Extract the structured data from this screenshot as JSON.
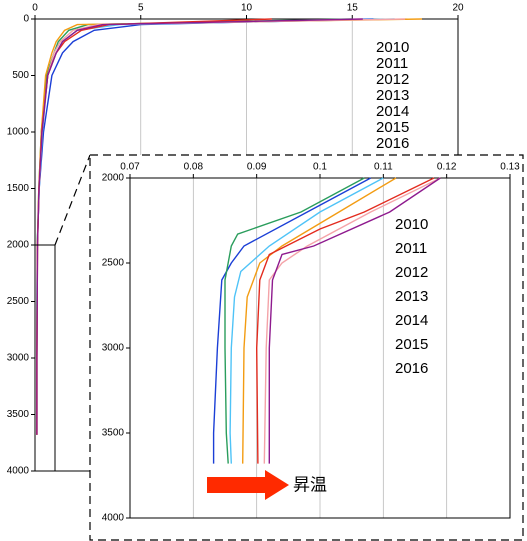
{
  "chart_data": [
    {
      "type": "line",
      "invert_y": true,
      "grid": true,
      "xlim": [
        0,
        20
      ],
      "xticks": [
        0,
        5,
        10,
        15,
        20
      ],
      "ylim": [
        0,
        4000
      ],
      "yticks": [
        0,
        500,
        1000,
        1500,
        2000,
        2500,
        3000,
        3500,
        4000
      ],
      "series": [
        {
          "name": "2010",
          "color": "#1b3fd6",
          "x": [
            16.0,
            5.0,
            2.8,
            1.8,
            1.3,
            0.8,
            0.4,
            0.2,
            0.108,
            0.084,
            0.083
          ],
          "y": [
            0,
            50,
            100,
            200,
            300,
            500,
            1000,
            1500,
            2000,
            3000,
            3680
          ]
        },
        {
          "name": "2011",
          "color": "#4fc3f7",
          "x": [
            17.0,
            4.0,
            2.0,
            1.3,
            1.0,
            0.6,
            0.35,
            0.2,
            0.11,
            0.086,
            0.086
          ],
          "y": [
            0,
            50,
            100,
            200,
            300,
            500,
            1000,
            1500,
            2000,
            3000,
            3680
          ]
        },
        {
          "name": "2012",
          "color": "#2a9d5c",
          "x": [
            15.0,
            2.5,
            1.6,
            1.1,
            0.9,
            0.55,
            0.3,
            0.18,
            0.107,
            0.085,
            0.0855
          ],
          "y": [
            0,
            50,
            100,
            200,
            300,
            500,
            1000,
            1500,
            2000,
            3000,
            3680
          ]
        },
        {
          "name": "2013",
          "color": "#f39c12",
          "x": [
            18.3,
            2.0,
            1.4,
            1.0,
            0.8,
            0.5,
            0.3,
            0.18,
            0.112,
            0.088,
            0.0878
          ],
          "y": [
            0,
            50,
            100,
            200,
            300,
            500,
            1000,
            1500,
            2000,
            3000,
            3680
          ]
        },
        {
          "name": "2014",
          "color": "#f4a3a8",
          "x": [
            17.5,
            3.0,
            1.8,
            1.2,
            0.9,
            0.6,
            0.33,
            0.19,
            0.119,
            0.0915,
            0.0912
          ],
          "y": [
            0,
            50,
            100,
            200,
            300,
            500,
            1000,
            1500,
            2000,
            3000,
            3680
          ]
        },
        {
          "name": "2015",
          "color": "#e32b1e",
          "x": [
            11.2,
            3.5,
            2.2,
            1.4,
            1.0,
            0.6,
            0.32,
            0.19,
            0.118,
            0.09,
            0.0902
          ],
          "y": [
            0,
            50,
            100,
            200,
            300,
            500,
            1000,
            1500,
            2000,
            3000,
            3680
          ]
        },
        {
          "name": "2016",
          "color": "#8e1a8e",
          "x": [
            15.5,
            3.2,
            2.0,
            1.3,
            1.0,
            0.6,
            0.33,
            0.19,
            0.119,
            0.092,
            0.092
          ],
          "y": [
            0,
            50,
            100,
            200,
            300,
            500,
            1000,
            1500,
            2000,
            3000,
            3680
          ]
        }
      ]
    },
    {
      "type": "line",
      "invert_y": true,
      "grid": true,
      "xlim": [
        0.07,
        0.13
      ],
      "xticks": [
        0.07,
        0.08,
        0.09,
        0.1,
        0.11,
        0.12,
        0.13
      ],
      "ylim": [
        2000,
        4000
      ],
      "yticks": [
        2000,
        2500,
        3000,
        3500,
        4000
      ],
      "annotation": "昇温",
      "series": [
        {
          "name": "2010",
          "color": "#1b3fd6",
          "x": [
            0.108,
            0.098,
            0.088,
            0.086,
            0.0845,
            0.0838,
            0.0832,
            0.0832
          ],
          "y": [
            2000,
            2200,
            2400,
            2500,
            2600,
            3000,
            3500,
            3680
          ]
        },
        {
          "name": "2011",
          "color": "#4fc3f7",
          "x": [
            0.11,
            0.1,
            0.092,
            0.0875,
            0.0865,
            0.086,
            0.0858,
            0.086
          ],
          "y": [
            2000,
            2200,
            2400,
            2550,
            2700,
            3000,
            3500,
            3680
          ]
        },
        {
          "name": "2012",
          "color": "#2a9d5c",
          "x": [
            0.107,
            0.097,
            0.087,
            0.086,
            0.085,
            0.085,
            0.0852,
            0.0855
          ],
          "y": [
            2000,
            2200,
            2330,
            2400,
            2600,
            3000,
            3500,
            3680
          ]
        },
        {
          "name": "2013",
          "color": "#f39c12",
          "x": [
            0.112,
            0.103,
            0.094,
            0.0905,
            0.0885,
            0.088,
            0.0878
          ],
          "y": [
            2000,
            2200,
            2400,
            2500,
            2700,
            3000,
            3680
          ]
        },
        {
          "name": "2014",
          "color": "#f4a3a8",
          "x": [
            0.119,
            0.108,
            0.098,
            0.094,
            0.092,
            0.0915,
            0.0912
          ],
          "y": [
            2000,
            2200,
            2400,
            2500,
            2600,
            3000,
            3680
          ]
        },
        {
          "name": "2015",
          "color": "#e32b1e",
          "x": [
            0.118,
            0.107,
            0.1,
            0.092,
            0.0905,
            0.09,
            0.0902
          ],
          "y": [
            2000,
            2200,
            2300,
            2450,
            2600,
            3000,
            3680
          ]
        },
        {
          "name": "2016",
          "color": "#8e1a8e",
          "x": [
            0.119,
            0.111,
            0.099,
            0.094,
            0.0925,
            0.092,
            0.092
          ],
          "y": [
            2000,
            2200,
            2400,
            2450,
            2600,
            3000,
            3680
          ]
        }
      ]
    }
  ]
}
